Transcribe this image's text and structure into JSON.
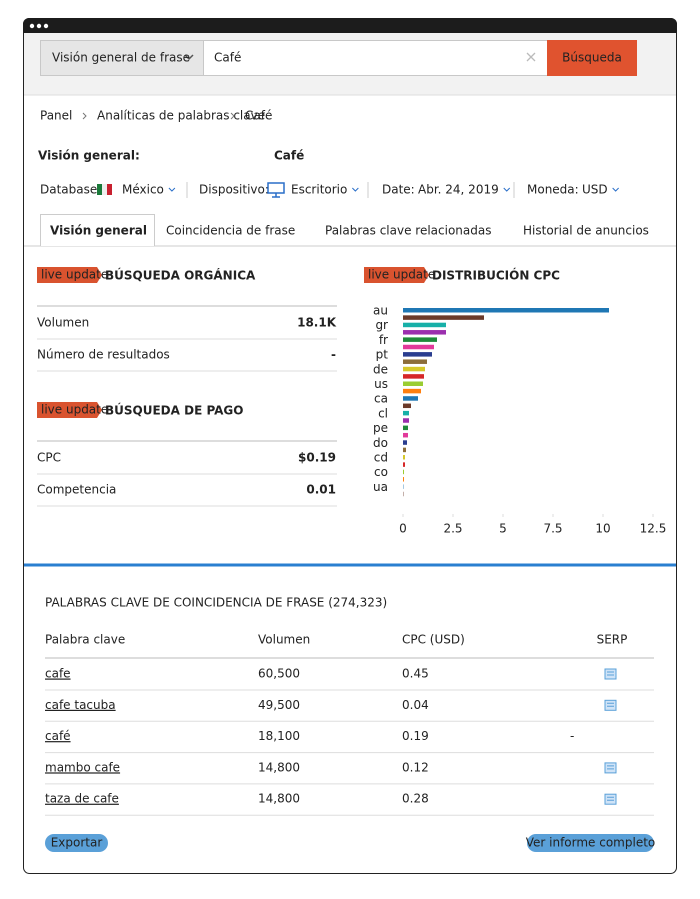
{
  "search": {
    "mode": "Visión general de frase",
    "query": "Café",
    "button": "Búsqueda"
  },
  "breadcrumb": [
    "Panel",
    "Analíticas de palabras clave",
    "Café"
  ],
  "title": "Visión general:",
  "title_keyword": "Café",
  "filters": [
    {
      "label": "Database:",
      "value": "México"
    },
    {
      "label": "Dispositivo:",
      "value": "Escritorio"
    },
    {
      "label": "Date:",
      "value": "Abr. 24, 2019"
    },
    {
      "label": "Moneda:",
      "value": "USD"
    }
  ],
  "tabs": [
    "Visión general",
    "Coincidencia de frase",
    "Palabras clave relacionadas",
    "Historial de anuncios"
  ],
  "organic": {
    "badge": "live update",
    "title": "BÚSQUEDA ORGÁNICA",
    "rows": [
      [
        "Volumen",
        "18.1K"
      ],
      [
        "Número de resultados",
        "-"
      ]
    ]
  },
  "paid": {
    "badge": "live update",
    "title": "BÚSQUEDA DE PAGO",
    "rows": [
      [
        "CPC",
        "$0.19"
      ],
      [
        "Competencia",
        "0.01"
      ]
    ]
  },
  "chart_data": {
    "type": "bar",
    "orientation": "horizontal",
    "badge": "live update",
    "title": "DISTRIBUCIÓN CPC",
    "categories": [
      "au",
      null,
      "gr",
      null,
      "fr",
      null,
      "pt",
      null,
      "de",
      null,
      "us",
      null,
      "ca",
      null,
      "cl",
      null,
      "pe",
      null,
      "do",
      null,
      "cd",
      null,
      "co",
      null,
      "ua",
      null
    ],
    "values": [
      10.3,
      4.05,
      2.15,
      2.15,
      1.7,
      1.55,
      1.45,
      1.2,
      1.1,
      1.05,
      1.0,
      0.9,
      0.75,
      0.4,
      0.3,
      0.3,
      0.25,
      0.25,
      0.2,
      0.15,
      0.1,
      0.1,
      0.05,
      0.05,
      0.02,
      0.02
    ],
    "colors": [
      "#1f77b4",
      "#6b3a2a",
      "#17b0a8",
      "#9b2fae",
      "#1f8a3a",
      "#e23a9a",
      "#2a3d8f",
      "#8c6d3a",
      "#d6c82a",
      "#d62728",
      "#9acd32",
      "#ff7f0e"
    ],
    "xlim": [
      0,
      12.5
    ],
    "xticks": [
      0,
      2.5,
      5,
      7.5,
      10,
      12.5
    ]
  },
  "table": {
    "title": "PALABRAS CLAVE DE COINCIDENCIA DE FRASE (274,323)",
    "header": [
      "Palabra clave",
      "Volumen",
      "CPC (USD)",
      "SERP"
    ],
    "rows": [
      {
        "keyword": "cafe",
        "volume": "60,500",
        "cpc": "0.45"
      },
      {
        "keyword": "cafe tacuba",
        "volume": "49,500",
        "cpc": "0.04"
      },
      {
        "keyword": "café",
        "volume": "18,100",
        "cpc": "0.19",
        "serp": "-"
      },
      {
        "keyword": "mambo cafe",
        "volume": "14,800",
        "cpc": "0.12"
      },
      {
        "keyword": "taza de cafe",
        "volume": "14,800",
        "cpc": "0.28"
      }
    ]
  },
  "buttons": [
    "Exportar",
    "Ver informe completo"
  ]
}
